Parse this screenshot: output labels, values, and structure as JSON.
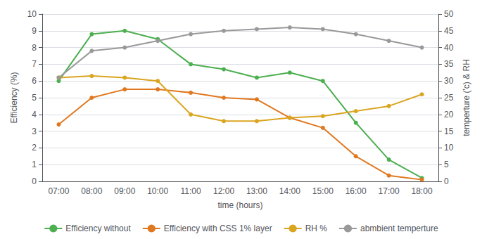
{
  "chart_data": {
    "type": "line",
    "xlabel": "time (hours)",
    "ylabel": "Efficiency (%)",
    "y2label": "temperture ('c) & RH",
    "categories": [
      "07:00",
      "08:00",
      "09:00",
      "10:00",
      "11:00",
      "12:00",
      "13:00",
      "14:00",
      "15:00",
      "16:00",
      "17:00",
      "18:00"
    ],
    "series": [
      {
        "name": "Efficiency without",
        "color": "#4CAF50",
        "marker": "circle",
        "line_style": "solid",
        "values": [
          6.0,
          8.8,
          9.0,
          8.5,
          7.0,
          6.7,
          6.2,
          6.5,
          6.0,
          3.5,
          1.3,
          0.2
        ]
      },
      {
        "name": "Efficiency with CSS 1% layer",
        "color": "#E07820",
        "marker": "circle",
        "line_style": "solid",
        "values": [
          3.4,
          5.0,
          5.5,
          5.5,
          5.3,
          5.0,
          4.9,
          3.8,
          3.2,
          1.5,
          0.35,
          0.1
        ]
      },
      {
        "name": "RH %",
        "color": "#DAA520",
        "marker": "circle",
        "line_style": "solid",
        "axis": "y2",
        "values": [
          31,
          31.5,
          31,
          30,
          20,
          18,
          18,
          19,
          19.5,
          21,
          22.5,
          26
        ]
      },
      {
        "name": "abmbient temperture",
        "color": "#999999",
        "marker": "circle",
        "line_style": "solid",
        "axis": "y2",
        "values": [
          31,
          39,
          40,
          42,
          44,
          45,
          45.5,
          46,
          45.5,
          44,
          42,
          40
        ]
      }
    ],
    "ylim": [
      0,
      10
    ],
    "yticks": [
      0,
      1,
      2,
      3,
      4,
      5,
      6,
      7,
      8,
      9,
      10
    ],
    "y2lim": [
      0,
      50
    ],
    "y2ticks": [
      0,
      5,
      10,
      15,
      20,
      25,
      30,
      35,
      40,
      45,
      50
    ],
    "grid": true,
    "legend": "bottom"
  }
}
